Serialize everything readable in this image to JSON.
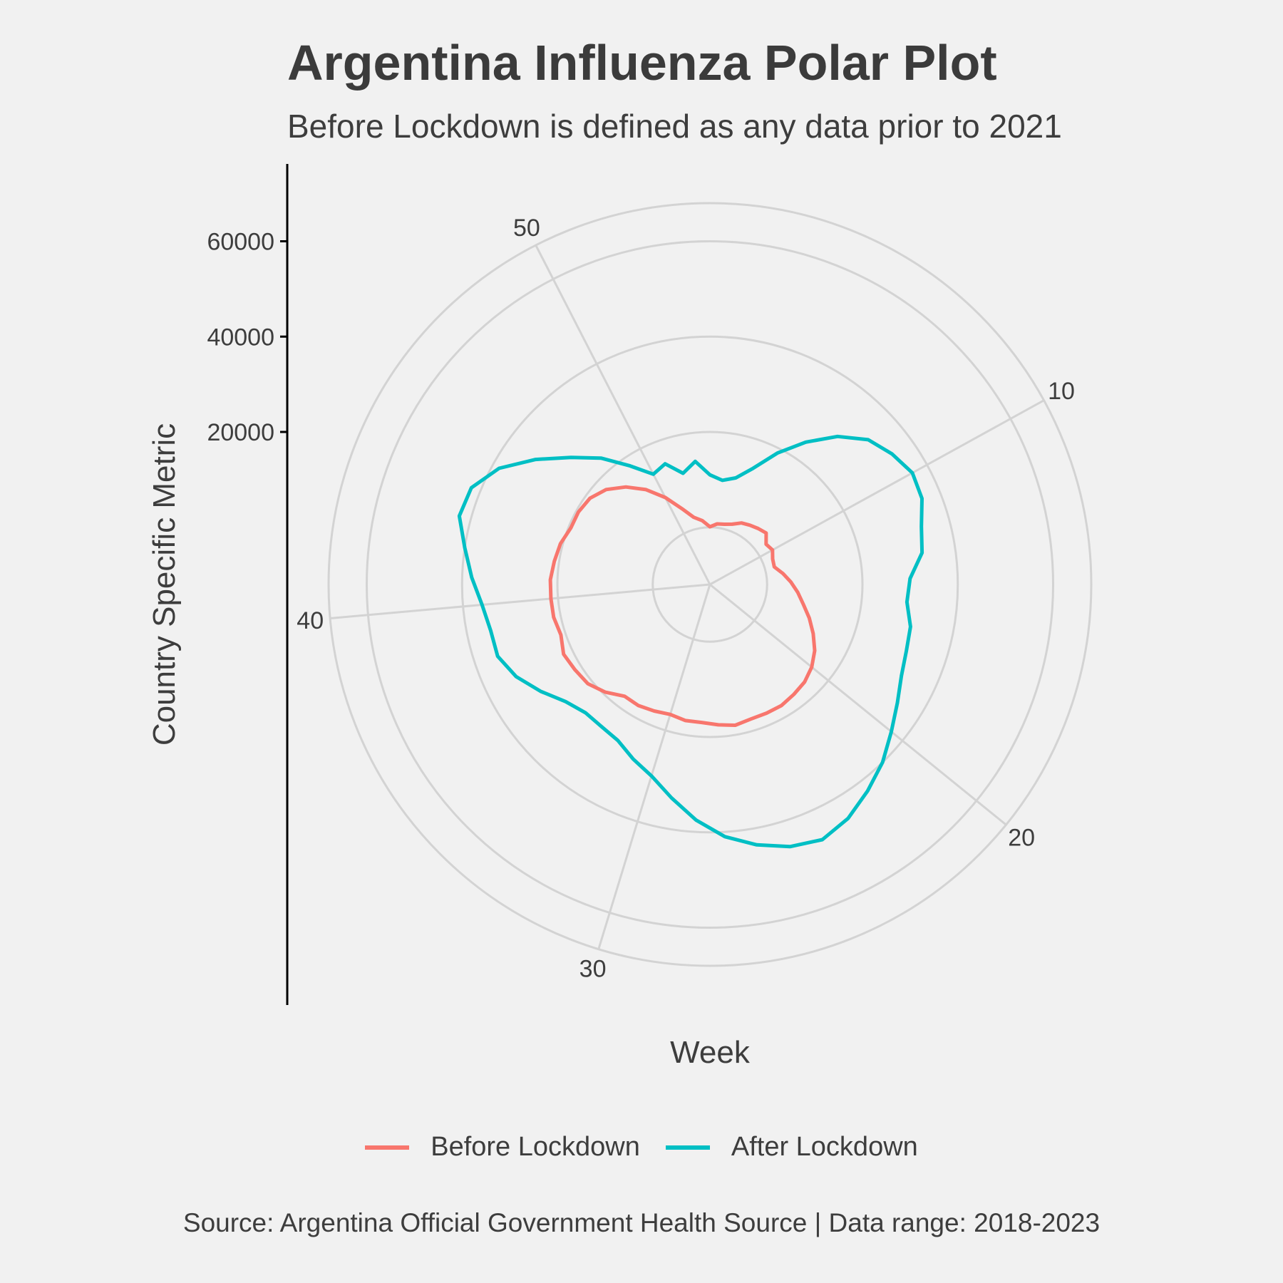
{
  "chart_data": {
    "type": "line",
    "coordinate_system": "polar",
    "title": "Argentina Influenza Polar Plot",
    "subtitle": "Before Lockdown is defined as any data prior to 2021",
    "xlabel": "Week",
    "ylabel": "Country Specific Metric",
    "caption": "Source: Argentina Official Government Health Source | Data range: 2018-2023",
    "x_ticks": [
      "10",
      "20",
      "30",
      "40",
      "50"
    ],
    "y_ticks": [
      "20000",
      "40000",
      "60000"
    ],
    "x_range": [
      1,
      53
    ],
    "y_range": [
      -12000,
      68000
    ],
    "grid": true,
    "legend_position": "bottom",
    "series": [
      {
        "name": "Before Lockdown",
        "color": "#F8766D",
        "x": [
          1,
          2,
          3,
          4,
          5,
          6,
          7,
          8,
          9,
          10,
          11,
          12,
          13,
          14,
          15,
          16,
          17,
          18,
          19,
          20,
          21,
          22,
          23,
          24,
          25,
          26,
          27,
          28,
          29,
          30,
          31,
          32,
          33,
          34,
          35,
          36,
          37,
          38,
          39,
          40,
          41,
          42,
          43,
          44,
          45,
          46,
          47,
          48,
          49,
          50,
          51,
          52,
          53
        ],
        "values": [
          100,
          800,
          1000,
          1500,
          2500,
          3000,
          3500,
          4000,
          2500,
          3000,
          2200,
          2000,
          3500,
          5000,
          6500,
          8000,
          10000,
          12000,
          14000,
          15500,
          16500,
          17000,
          17500,
          17500,
          17500,
          18000,
          17500,
          17000,
          17000,
          16500,
          17000,
          17500,
          17500,
          19500,
          21000,
          21500,
          22000,
          21000,
          21500,
          21500,
          21500,
          21000,
          20500,
          19500,
          19500,
          19000,
          17500,
          15000,
          12000,
          8500,
          5000,
          2500,
          1500
        ]
      },
      {
        "name": "After Lockdown",
        "color": "#00BFC4",
        "x": [
          1,
          2,
          3,
          4,
          5,
          6,
          7,
          8,
          9,
          10,
          11,
          12,
          13,
          14,
          15,
          16,
          17,
          18,
          19,
          20,
          21,
          22,
          23,
          24,
          25,
          26,
          27,
          28,
          29,
          30,
          31,
          32,
          33,
          34,
          35,
          36,
          37,
          38,
          39,
          40,
          41,
          42,
          43,
          44,
          45,
          46,
          47,
          48,
          49,
          50,
          51,
          52,
          53
        ],
        "values": [
          11000,
          10000,
          11000,
          14000,
          19000,
          24000,
          29000,
          33000,
          35000,
          36500,
          36000,
          34000,
          33000,
          30000,
          29500,
          31000,
          31500,
          32500,
          34500,
          37000,
          40000,
          42500,
          45000,
          46500,
          45500,
          43500,
          41000,
          37500,
          33500,
          30000,
          28000,
          26000,
          25500,
          25500,
          27000,
          30000,
          33000,
          35000,
          35000,
          36000,
          38000,
          40000,
          42500,
          42000,
          38500,
          33000,
          27500,
          23000,
          18000,
          14000,
          15000,
          12000,
          14000
        ]
      }
    ]
  }
}
